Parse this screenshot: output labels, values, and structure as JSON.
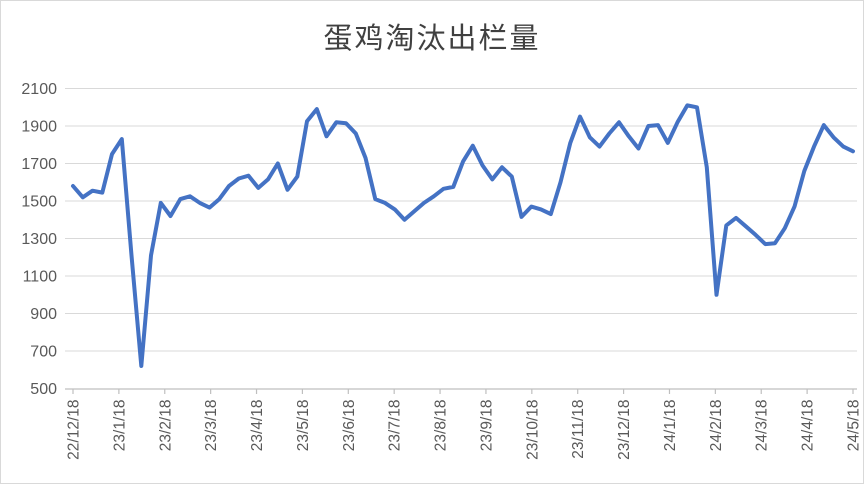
{
  "chart": {
    "title": "蛋鸡淘汰出栏量",
    "colors": {
      "line": "#4472C4",
      "grid": "#d9d9d9",
      "axis": "#bfbfbf",
      "tick_text": "#595959",
      "title_text": "#404040",
      "background": "#ffffff",
      "border": "#d9d9d9"
    }
  },
  "chart_data": {
    "type": "line",
    "title": "蛋鸡淘汰出栏量",
    "xlabel": "",
    "ylabel": "",
    "ylim": [
      500,
      2100
    ],
    "y_tick_step": 200,
    "y_tick_labels": [
      "2100",
      "1900",
      "1700",
      "1500",
      "1300",
      "1100",
      "900",
      "700",
      "500"
    ],
    "x_tick_labels": [
      "22/12/18",
      "23/1/18",
      "23/2/18",
      "23/3/18",
      "23/4/18",
      "23/5/18",
      "23/6/18",
      "23/7/18",
      "23/8/18",
      "23/9/18",
      "23/10/18",
      "23/11/18",
      "23/12/18",
      "24/1/18",
      "24/2/18",
      "24/3/18",
      "24/4/18",
      "24/5/18"
    ],
    "grid": "horizontal-only",
    "legend_position": "none",
    "values": [
      1580,
      1520,
      1555,
      1545,
      1750,
      1830,
      1210,
      620,
      1210,
      1490,
      1420,
      1510,
      1525,
      1490,
      1465,
      1510,
      1580,
      1620,
      1635,
      1570,
      1615,
      1700,
      1560,
      1630,
      1925,
      1990,
      1845,
      1920,
      1915,
      1860,
      1730,
      1510,
      1490,
      1455,
      1400,
      1445,
      1490,
      1525,
      1565,
      1575,
      1710,
      1795,
      1690,
      1615,
      1680,
      1630,
      1415,
      1470,
      1455,
      1430,
      1600,
      1810,
      1950,
      1840,
      1790,
      1860,
      1920,
      1845,
      1780,
      1900,
      1905,
      1810,
      1920,
      2010,
      2000,
      1680,
      1000,
      1370,
      1410,
      1365,
      1320,
      1270,
      1275,
      1355,
      1470,
      1660,
      1790,
      1905,
      1840,
      1790,
      1765
    ]
  }
}
